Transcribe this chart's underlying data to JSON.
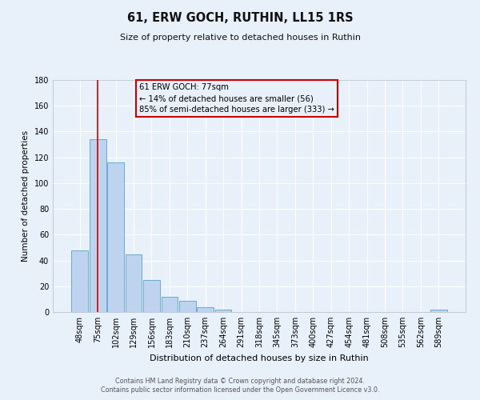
{
  "title": "61, ERW GOCH, RUTHIN, LL15 1RS",
  "subtitle": "Size of property relative to detached houses in Ruthin",
  "xlabel": "Distribution of detached houses by size in Ruthin",
  "ylabel": "Number of detached properties",
  "bar_labels": [
    "48sqm",
    "75sqm",
    "102sqm",
    "129sqm",
    "156sqm",
    "183sqm",
    "210sqm",
    "237sqm",
    "264sqm",
    "291sqm",
    "318sqm",
    "345sqm",
    "373sqm",
    "400sqm",
    "427sqm",
    "454sqm",
    "481sqm",
    "508sqm",
    "535sqm",
    "562sqm",
    "589sqm"
  ],
  "bar_values": [
    48,
    134,
    116,
    45,
    25,
    12,
    9,
    4,
    2,
    0,
    0,
    0,
    0,
    0,
    0,
    0,
    0,
    0,
    0,
    0,
    2
  ],
  "bar_color": "#bed4ee",
  "bar_edgecolor": "#6aaad4",
  "ylim": [
    0,
    180
  ],
  "yticks": [
    0,
    20,
    40,
    60,
    80,
    100,
    120,
    140,
    160,
    180
  ],
  "vline_x_idx": 1,
  "vline_color": "#cc0000",
  "annotation_title": "61 ERW GOCH: 77sqm",
  "annotation_line1": "← 14% of detached houses are smaller (56)",
  "annotation_line2": "85% of semi-detached houses are larger (333) →",
  "annotation_box_edgecolor": "#cc0000",
  "footer_line1": "Contains HM Land Registry data © Crown copyright and database right 2024.",
  "footer_line2": "Contains public sector information licensed under the Open Government Licence v3.0.",
  "background_color": "#e8f0fa",
  "grid_color": "#ffffff",
  "spine_color": "#b0b8c8"
}
